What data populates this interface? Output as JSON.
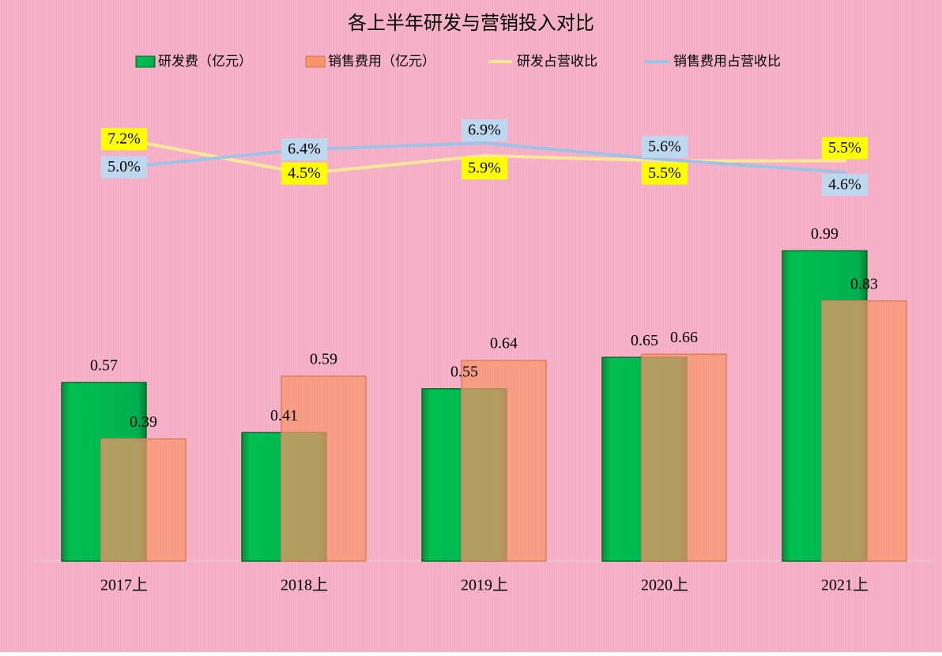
{
  "chart_data": {
    "type": "bar",
    "title": "各上半年研发与营销投入对比",
    "categories": [
      "2017上",
      "2018上",
      "2019上",
      "2020上",
      "2021上"
    ],
    "ylim": [
      0,
      1.5
    ],
    "y2lim": [
      -26,
      11
    ],
    "series": [
      {
        "name": "研发费（亿元）",
        "type": "bar",
        "color": "#00b050",
        "values": [
          0.57,
          0.41,
          0.55,
          0.65,
          0.99
        ]
      },
      {
        "name": "销售费用（亿元）",
        "type": "bar",
        "color": "#f79468",
        "values": [
          0.39,
          0.59,
          0.64,
          0.66,
          0.83
        ]
      },
      {
        "name": "研发占营收比",
        "type": "line",
        "axis": "y2",
        "color": "#ffe699",
        "label_bg": "#ffff00",
        "values": [
          7.2,
          4.5,
          5.9,
          5.5,
          5.5
        ],
        "value_labels": [
          "7.2%",
          "4.5%",
          "5.9%",
          "5.5%",
          "5.5%"
        ]
      },
      {
        "name": "销售费用占营收比",
        "type": "line",
        "axis": "y2",
        "color": "#9dc3e6",
        "label_bg": "#bdd7ee",
        "values": [
          5.0,
          6.4,
          6.9,
          5.6,
          4.6
        ],
        "value_labels": [
          "5.0%",
          "6.4%",
          "6.9%",
          "5.6%",
          "4.6%"
        ]
      }
    ]
  }
}
